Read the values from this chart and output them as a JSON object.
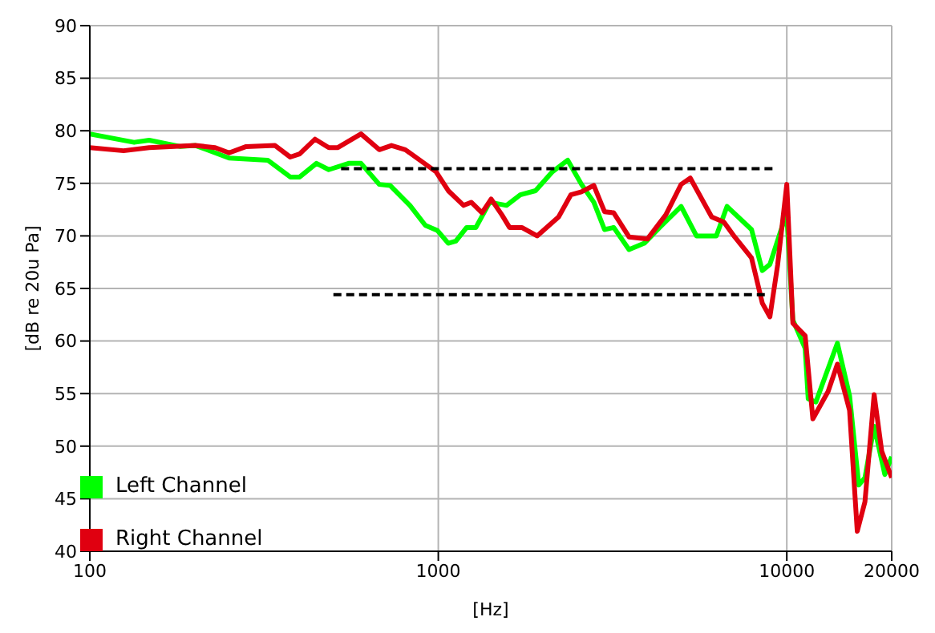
{
  "chart_data": {
    "type": "line",
    "xlabel": "[Hz]",
    "ylabel": "[dB re 20u Pa]",
    "log": "x",
    "xlim": [
      100,
      20000
    ],
    "xticks": [
      100,
      1000,
      10000,
      20000
    ],
    "ylim": [
      40,
      90
    ],
    "yticks": [
      40,
      45,
      50,
      55,
      60,
      65,
      70,
      75,
      80,
      85,
      90
    ],
    "grid": true,
    "legend": "bottom left",
    "marker": "none",
    "series": [
      {
        "name": "Left Channel",
        "color": "#00ff00",
        "x": [
          100,
          134,
          148,
          182,
          201,
          251,
          324,
          376,
          400,
          447,
          485,
          553,
          600,
          677,
          727,
          829,
          918,
          995,
          1068,
          1123,
          1206,
          1282,
          1404,
          1569,
          1719,
          1901,
          2126,
          2352,
          2576,
          2794,
          2999,
          3187,
          3526,
          3901,
          4317,
          4975,
          5505,
          6277,
          6736,
          7923,
          8507,
          8945,
          9900,
          10000,
          10410,
          11290,
          11520,
          12120,
          13970,
          15140,
          16090,
          16760,
          17810,
          19110,
          20000
        ],
        "values": [
          79.7,
          78.9,
          79.1,
          78.5,
          78.6,
          77.4,
          77.2,
          75.6,
          75.6,
          76.9,
          76.3,
          76.9,
          76.9,
          74.9,
          74.8,
          72.9,
          71.0,
          70.5,
          69.3,
          69.5,
          70.8,
          70.8,
          73.2,
          72.9,
          73.9,
          74.3,
          76.1,
          77.2,
          74.9,
          73.2,
          70.6,
          70.8,
          68.7,
          69.3,
          70.8,
          72.8,
          70.0,
          70.0,
          72.8,
          70.6,
          66.7,
          67.3,
          71.8,
          72.0,
          62.0,
          59.3,
          54.5,
          54.2,
          59.8,
          54.8,
          46.3,
          47.0,
          51.9,
          47.3,
          49.0
        ]
      },
      {
        "name": "Right Channel",
        "color": "#e00010",
        "x": [
          100,
          125,
          148,
          201,
          229,
          251,
          281,
          340,
          376,
          400,
          443,
          485,
          515,
          600,
          677,
          734,
          804,
          985,
          1068,
          1182,
          1243,
          1335,
          1418,
          1522,
          1601,
          1736,
          1921,
          2214,
          2400,
          2576,
          2794,
          2999,
          3187,
          3526,
          3981,
          4496,
          4975,
          5285,
          6088,
          6602,
          7087,
          7923,
          8507,
          8945,
          9410,
          10000,
          10410,
          11290,
          11880,
          13140,
          13970,
          15140,
          15930,
          16760,
          17810,
          18730,
          20000
        ],
        "values": [
          78.4,
          78.1,
          78.4,
          78.6,
          78.4,
          77.9,
          78.5,
          78.6,
          77.5,
          77.8,
          79.2,
          78.4,
          78.4,
          79.7,
          78.2,
          78.6,
          78.2,
          76.1,
          74.3,
          72.9,
          73.2,
          72.2,
          73.5,
          72.0,
          70.8,
          70.8,
          70.0,
          71.8,
          73.9,
          74.2,
          74.8,
          72.3,
          72.2,
          69.9,
          69.7,
          72.0,
          74.9,
          75.5,
          71.8,
          71.3,
          69.9,
          67.9,
          63.6,
          62.3,
          67.2,
          74.9,
          61.7,
          60.5,
          52.6,
          55.2,
          57.8,
          53.4,
          41.9,
          44.7,
          54.9,
          49.5,
          47.0
        ]
      },
      {
        "color": "#000000",
        "line_style": "dashed",
        "x": [
          526,
          9120
        ],
        "values": [
          76.4,
          76.4
        ]
      },
      {
        "color": "#000000",
        "line_style": "dashed",
        "x": [
          500,
          8670
        ],
        "values": [
          64.4,
          64.4
        ]
      }
    ]
  }
}
